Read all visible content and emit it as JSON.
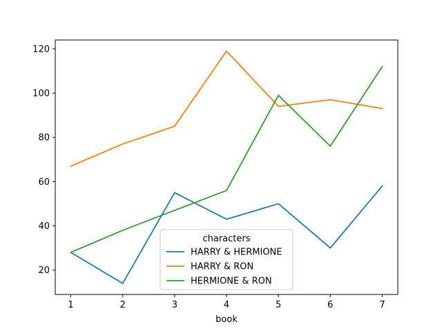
{
  "chart_data": {
    "type": "line",
    "x": [
      1,
      2,
      3,
      4,
      5,
      6,
      7
    ],
    "xlabel": "book",
    "ylabel": "",
    "xlim": [
      0.7,
      7.3
    ],
    "ylim": [
      9,
      124
    ],
    "xticks": [
      1,
      2,
      3,
      4,
      5,
      6,
      7
    ],
    "yticks": [
      20,
      40,
      60,
      80,
      100,
      120
    ],
    "grid": false,
    "legend": {
      "title": "characters",
      "placement": "lower-center"
    },
    "series": [
      {
        "name": "HARRY & HERMIONE",
        "color": "#1f77b4",
        "values": [
          28,
          14,
          55,
          43,
          50,
          30,
          58
        ]
      },
      {
        "name": "HARRY & RON",
        "color": "#ff7f0e",
        "values": [
          67,
          77,
          85,
          119,
          94,
          97,
          93
        ]
      },
      {
        "name": "HERMIONE & RON",
        "color": "#2ca02c",
        "values": [
          28,
          38,
          47,
          56,
          99,
          76,
          112
        ]
      }
    ]
  }
}
